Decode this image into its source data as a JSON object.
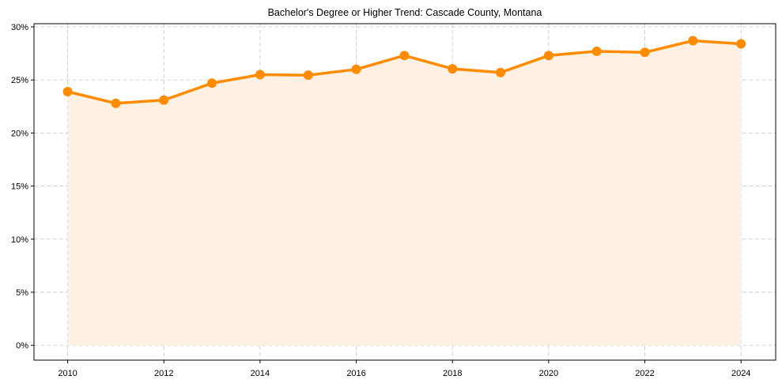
{
  "chart_data": {
    "type": "line",
    "title": "Bachelor's Degree or Higher Trend: Cascade County, Montana",
    "xlabel": "",
    "ylabel": "",
    "x": [
      2010,
      2011,
      2012,
      2013,
      2014,
      2015,
      2016,
      2017,
      2018,
      2019,
      2020,
      2021,
      2022,
      2023,
      2024
    ],
    "series": [
      {
        "name": "Bachelor's Degree or Higher",
        "values": [
          23.9,
          22.8,
          23.1,
          24.7,
          25.5,
          25.45,
          26.0,
          27.3,
          26.05,
          25.7,
          27.3,
          27.7,
          27.6,
          28.7,
          28.4
        ],
        "color": "#FF8C00",
        "fill_color": "#FEF0E2",
        "marker": "circle",
        "area_fill": true
      }
    ],
    "xticks": [
      2010,
      2012,
      2014,
      2016,
      2018,
      2020,
      2022,
      2024
    ],
    "xtick_labels": [
      "2010",
      "2012",
      "2014",
      "2016",
      "2018",
      "2020",
      "2022",
      "2024"
    ],
    "yticks": [
      0,
      5,
      10,
      15,
      20,
      25,
      30
    ],
    "ytick_labels": [
      "0%",
      "5%",
      "10%",
      "15%",
      "20%",
      "25%",
      "30%"
    ],
    "xlim": [
      2009.3,
      2024.72
    ],
    "ylim": [
      -1.4,
      30.3
    ],
    "grid": true,
    "grid_style": "dashed",
    "legend": null
  }
}
